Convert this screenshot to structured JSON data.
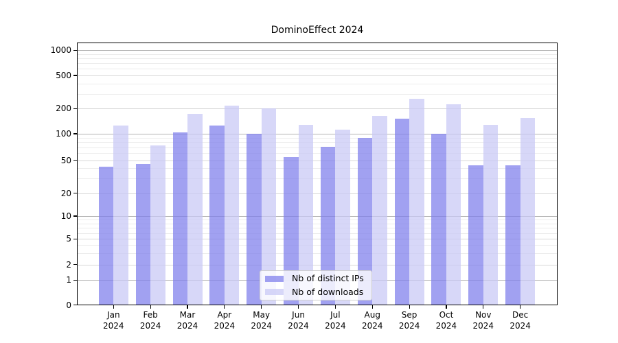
{
  "chart_data": {
    "type": "bar",
    "title": "DominoEffect 2024",
    "categories": [
      "Jan",
      "Feb",
      "Mar",
      "Apr",
      "May",
      "Jun",
      "Jul",
      "Aug",
      "Sep",
      "Oct",
      "Nov",
      "Dec"
    ],
    "category_year": "2024",
    "series": [
      {
        "name": "Nb of distinct IPs",
        "color": "#7d7deb",
        "values": [
          42,
          45,
          103,
          125,
          100,
          54,
          71,
          90,
          152,
          100,
          43,
          43
        ]
      },
      {
        "name": "Nb of downloads",
        "color": "#c8c8f5",
        "values": [
          126,
          73,
          172,
          215,
          201,
          129,
          113,
          163,
          261,
          224,
          127,
          155
        ]
      }
    ],
    "xlabel": "",
    "ylabel": "",
    "yscale": "symlog",
    "yticks": [
      0,
      1,
      2,
      5,
      10,
      20,
      50,
      100,
      200,
      500,
      1000
    ],
    "ylim": [
      0,
      1200
    ],
    "grid": true,
    "legend_position": "lower center",
    "colors": {
      "major_gridline": "#b2b2b2",
      "mid_gridline": "#d7d7d7",
      "minor_gridline": "#ececec",
      "axis": "#000000",
      "background": "#ffffff"
    }
  }
}
